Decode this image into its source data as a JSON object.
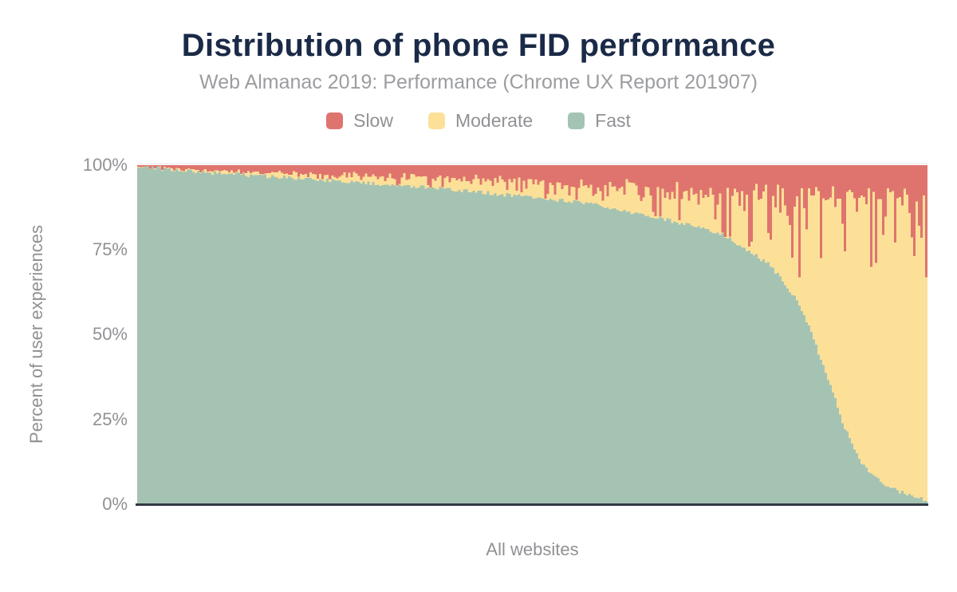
{
  "header": {
    "title": "Distribution of phone FID performance",
    "subtitle": "Web Almanac 2019: Performance (Chrome UX Report 201907)"
  },
  "legend": {
    "position": "top",
    "items": [
      {
        "label": "Slow",
        "color": "#df746e"
      },
      {
        "label": "Moderate",
        "color": "#fce098"
      },
      {
        "label": "Fast",
        "color": "#a5c3b3"
      }
    ]
  },
  "axes": {
    "y": {
      "title": "Percent of user experiences",
      "tick_labels": [
        "100%",
        "75%",
        "50%",
        "25%",
        "0%"
      ],
      "min": 0,
      "max": 100
    },
    "x": {
      "title": "All websites"
    }
  },
  "colors": {
    "title_text": "#1a2a47",
    "subtitle_text": "#9b9da0",
    "axis_text": "#8f9194",
    "axis_line": "#333a42",
    "gridline_100": "#e7e7e7",
    "background": "#ffffff"
  },
  "chart_data": {
    "type": "bar",
    "stacked": true,
    "title": "Distribution of phone FID performance",
    "subtitle": "Web Almanac 2019: Performance (Chrome UX Report 201907)",
    "xlabel": "All websites",
    "ylabel": "Percent of user experiences",
    "ylim": [
      0,
      100
    ],
    "grid": false,
    "legend_position": "top",
    "x_unit": "fraction of websites, sorted by Fast share (descending)",
    "n_bars": 330,
    "stack_order_bottom_to_top": [
      "fast",
      "moderate",
      "slow"
    ],
    "series_colors": {
      "slow": "#df746e",
      "moderate": "#fce098",
      "fast": "#a5c3b3"
    },
    "fast_pct_keypoints": [
      [
        0.0,
        99.6
      ],
      [
        0.03,
        99.0
      ],
      [
        0.08,
        98.0
      ],
      [
        0.15,
        96.9
      ],
      [
        0.22,
        95.8
      ],
      [
        0.3,
        94.6
      ],
      [
        0.38,
        93.2
      ],
      [
        0.45,
        91.6
      ],
      [
        0.52,
        90.1
      ],
      [
        0.58,
        88.4
      ],
      [
        0.614,
        86.5
      ],
      [
        0.664,
        84.2
      ],
      [
        0.714,
        81.6
      ],
      [
        0.74,
        79.5
      ],
      [
        0.765,
        76.0
      ],
      [
        0.798,
        71.0
      ],
      [
        0.815,
        66.5
      ],
      [
        0.835,
        60.0
      ],
      [
        0.85,
        52.5
      ],
      [
        0.866,
        42.0
      ],
      [
        0.883,
        31.0
      ],
      [
        0.893,
        24.0
      ],
      [
        0.906,
        17.0
      ],
      [
        0.916,
        12.5
      ],
      [
        0.933,
        8.0
      ],
      [
        0.95,
        5.2
      ],
      [
        0.97,
        3.2
      ],
      [
        0.985,
        2.0
      ],
      [
        1.0,
        1.2
      ]
    ],
    "slow_pct_base_keypoints": [
      [
        0.0,
        0.7
      ],
      [
        0.05,
        1.2
      ],
      [
        0.12,
        1.7
      ],
      [
        0.2,
        2.2
      ],
      [
        0.3,
        2.8
      ],
      [
        0.4,
        3.5
      ],
      [
        0.5,
        4.3
      ],
      [
        0.6,
        5.5
      ],
      [
        0.68,
        6.5
      ],
      [
        0.75,
        7.2
      ],
      [
        0.85,
        7.8
      ],
      [
        1.0,
        8.2
      ]
    ],
    "slow_spike_amplitude_keypoints": [
      [
        0.0,
        0.3
      ],
      [
        0.25,
        0.7
      ],
      [
        0.45,
        1.3
      ],
      [
        0.6,
        2.2
      ],
      [
        0.7,
        4.0
      ],
      [
        0.78,
        6.0
      ],
      [
        0.85,
        8.0
      ],
      [
        1.0,
        9.0
      ]
    ],
    "forced_slow_spikes": [
      [
        0.557,
        11
      ],
      [
        0.657,
        15
      ],
      [
        0.74,
        21
      ],
      [
        0.8,
        22
      ],
      [
        0.838,
        33
      ],
      [
        0.928,
        30
      ],
      [
        0.997,
        33
      ]
    ],
    "moderate_rule": "moderate = 100 - fast - slow",
    "noise_seed": 42
  }
}
